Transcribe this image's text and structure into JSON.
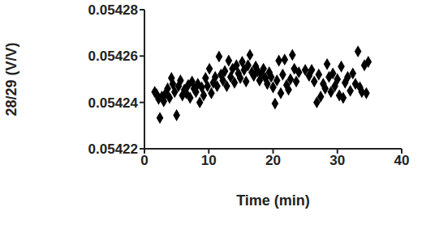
{
  "chart_data": {
    "type": "scatter",
    "x_label": "Time  (min)",
    "y_label": "28/29  (V/V)",
    "xlim": [
      0,
      40
    ],
    "xticks": [
      0,
      10,
      20,
      30,
      40
    ],
    "ylim": [
      0.05422,
      0.05428
    ],
    "yticks": [
      0.05422,
      0.05424,
      0.05426,
      0.05428
    ],
    "grid": false,
    "series": [
      {
        "color": "#000000",
        "marker": "diamond",
        "x": [
          1.6,
          1.9,
          2.2,
          2.4,
          2.7,
          3.0,
          3.3,
          3.6,
          3.9,
          4.2,
          4.4,
          4.7,
          5.0,
          5.3,
          5.6,
          5.9,
          6.2,
          6.5,
          6.8,
          7.1,
          7.4,
          7.7,
          8.0,
          8.3,
          8.6,
          8.9,
          9.2,
          9.5,
          9.8,
          10.1,
          10.4,
          10.7,
          11.0,
          11.3,
          11.6,
          11.9,
          12.2,
          12.5,
          12.8,
          13.1,
          13.4,
          13.7,
          14.0,
          14.3,
          14.6,
          14.9,
          15.2,
          15.5,
          15.8,
          16.1,
          16.4,
          16.7,
          17.0,
          17.3,
          17.6,
          17.9,
          18.2,
          18.5,
          18.8,
          19.1,
          19.4,
          19.7,
          20.0,
          20.3,
          20.6,
          20.9,
          21.2,
          21.5,
          21.8,
          22.1,
          22.4,
          22.7,
          23.0,
          23.3,
          23.6,
          24.0,
          25.0,
          25.6,
          26.0,
          26.4,
          26.8,
          27.1,
          27.4,
          27.8,
          28.1,
          28.4,
          28.7,
          29.0,
          29.3,
          29.6,
          30.0,
          30.3,
          30.6,
          30.9,
          31.2,
          31.6,
          32.0,
          32.4,
          32.8,
          33.2,
          33.5,
          33.8,
          34.2,
          34.5,
          34.8
        ],
        "values": [
          0.0542445,
          0.0542435,
          0.0542415,
          0.0542333,
          0.0542425,
          0.0542405,
          0.054244,
          0.054246,
          0.054242,
          0.0542505,
          0.054248,
          0.0542445,
          0.0542345,
          0.054247,
          0.0542495,
          0.054243,
          0.0542455,
          0.054244,
          0.0542475,
          0.054242,
          0.054249,
          0.054246,
          0.0542445,
          0.054248,
          0.05424,
          0.0542465,
          0.054243,
          0.0542505,
          0.054247,
          0.0542545,
          0.054244,
          0.0542485,
          0.054251,
          0.054247,
          0.0542598,
          0.054252,
          0.0542495,
          0.0542535,
          0.054247,
          0.054258,
          0.054251,
          0.0542545,
          0.0542485,
          0.054256,
          0.0542525,
          0.0542505,
          0.0542575,
          0.054254,
          0.054249,
          0.054256,
          0.0542605,
          0.054253,
          0.0542515,
          0.0542555,
          0.0542535,
          0.0542495,
          0.054252,
          0.0542545,
          0.0542505,
          0.054248,
          0.054253,
          0.054251,
          0.0542465,
          0.0542395,
          0.0542495,
          0.054258,
          0.054244,
          0.054252,
          0.0542585,
          0.0542475,
          0.0542455,
          0.05425,
          0.0542605,
          0.0542545,
          0.054249,
          0.054253,
          0.054254,
          0.0542515,
          0.054254,
          0.054249,
          0.05424,
          0.054252,
          0.0542425,
          0.054248,
          0.054246,
          0.0542565,
          0.054251,
          0.0542445,
          0.0542525,
          0.054247,
          0.05425,
          0.054243,
          0.0542555,
          0.054242,
          0.0542485,
          0.054251,
          0.054245,
          0.0542525,
          0.054248,
          0.054262,
          0.0542465,
          0.0542445,
          0.054256,
          0.054244,
          0.0542575
        ]
      }
    ]
  }
}
